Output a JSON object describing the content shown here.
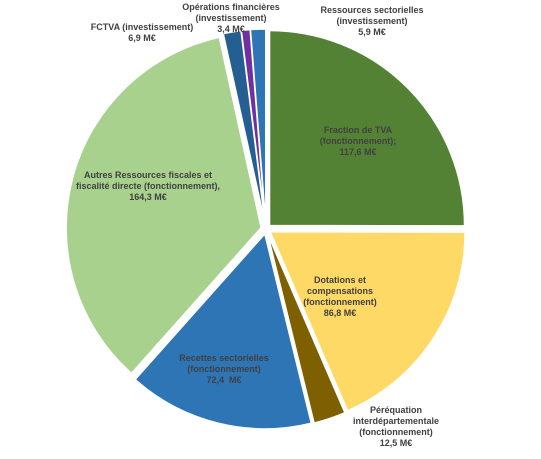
{
  "chart_data": {
    "type": "pie",
    "categories": [
      "Fraction de TVA (fonctionnement);",
      "Dotations et compensations (fonctionnement)",
      "Péréquation interdépartementale (fonctionnement)",
      "Recettes sectorielles (fonctionnement)",
      "Autres Ressources fiscales et fiscalité directe (fonctionnement),",
      "FCTVA (investissement)",
      "Opérations financières (investissement)",
      "Ressources sectorielles (investissement)"
    ],
    "values": [
      117.6,
      86.8,
      12.5,
      72.4,
      164.3,
      6.9,
      3.4,
      5.9
    ],
    "value_labels": [
      "117,6 M€",
      "86,8 M€",
      "12,5 M€",
      "72,4  M€",
      "164,3 M€",
      "6,9 M€",
      "3,4 M€",
      "5,9 M€"
    ],
    "colors": [
      "#548235",
      "#ffd966",
      "#7f6000",
      "#2e75b6",
      "#a9d18e",
      "#255e91",
      "#7030a0",
      "#2e75b6"
    ]
  }
}
